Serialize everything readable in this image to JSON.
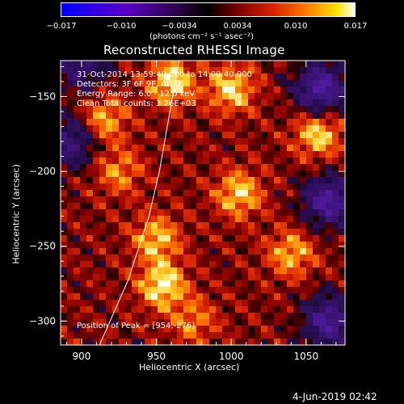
{
  "colorbar": {
    "ticks": [
      "−0.017",
      "−0.010",
      "−0.0034",
      "0.0034",
      "0.010",
      "0.017"
    ],
    "tick_values": [
      -0.017,
      -0.01,
      -0.0034,
      0.0034,
      0.01,
      0.017
    ],
    "range": [
      -0.017,
      0.017
    ],
    "units_label": "(photons cm⁻² s⁻¹ asec⁻²)"
  },
  "chart_data": {
    "type": "heatmap",
    "title": "Reconstructed RHESSI Image",
    "xlabel": "Heliocentric X (arcsec)",
    "ylabel": "Heliocentric Y (arcsec)",
    "xlim": [
      886,
      1076
    ],
    "ylim": [
      -316,
      -126
    ],
    "xticks": [
      900,
      950,
      1000,
      1050
    ],
    "yticks": [
      -150,
      -200,
      -250,
      -300
    ],
    "annotations": {
      "time": "31-Oct-2014 13:59:40.000 to 14:00:40.000",
      "detectors": "Detectors: 3F 6F 9F, Att 0",
      "energy": "Energy Range: 6.0 - 12.0 keV",
      "clean": "Clean     Total counts: 3.26E+03",
      "peak": "Position of Peak = [954,-276]"
    },
    "peak": [
      954,
      -276
    ],
    "limb_curve": [
      [
        912,
        -316
      ],
      [
        931,
        -273
      ],
      [
        945,
        -230
      ],
      [
        952,
        -200
      ],
      [
        959,
        -160
      ],
      [
        965,
        -126
      ]
    ],
    "bright_sources": [
      {
        "x": 954,
        "y": -276,
        "level": 1.0
      },
      {
        "x": 960,
        "y": -140,
        "level": 0.95
      },
      {
        "x": 1000,
        "y": -145,
        "level": 0.9
      },
      {
        "x": 1058,
        "y": -175,
        "level": 0.9
      },
      {
        "x": 1005,
        "y": -215,
        "level": 0.85
      },
      {
        "x": 950,
        "y": -245,
        "level": 0.8
      },
      {
        "x": 915,
        "y": -165,
        "level": 0.75
      },
      {
        "x": 1040,
        "y": -255,
        "level": 0.75
      },
      {
        "x": 925,
        "y": -200,
        "level": 0.6
      },
      {
        "x": 975,
        "y": -300,
        "level": 0.55
      }
    ],
    "dark_regions": [
      {
        "x": 1060,
        "y": -145,
        "level": 1.0
      },
      {
        "x": 1065,
        "y": -220,
        "level": 0.95
      },
      {
        "x": 1065,
        "y": -300,
        "level": 0.9
      },
      {
        "x": 893,
        "y": -180,
        "level": 0.7
      },
      {
        "x": 900,
        "y": -130,
        "level": 0.6
      }
    ]
  },
  "timestamp": "4-Jun-2019 02:42"
}
